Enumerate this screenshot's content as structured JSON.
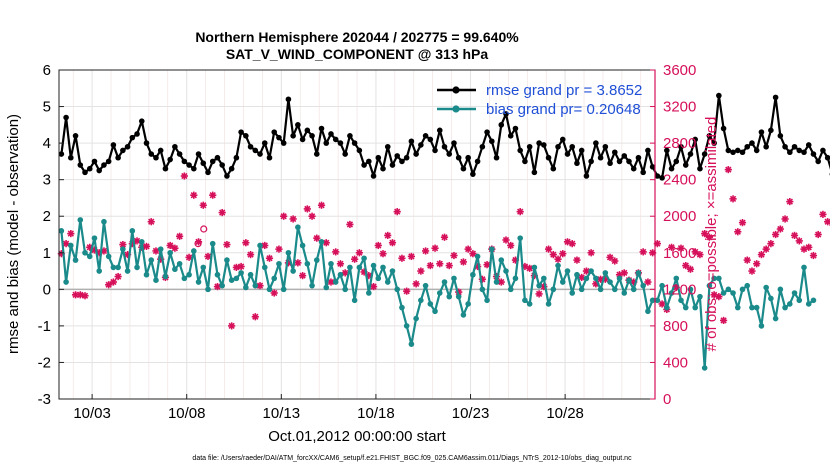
{
  "chart_data": {
    "type": "line",
    "title": "Northern Hemisphere 202044 / 202775 = 99.640%",
    "subtitle": "SAT_V_WIND_COMPONENT @ 313 hPa",
    "xlabel": "Oct.01,2012 00:00:00 start",
    "ylabel": "rmse and bias (model - observation)",
    "y2label": "# of obs: o=possible; ×=assimilated",
    "footnote": "data file: /Users/raeder/DAI/ATM_forcXX/CAM6_setup/f.e21.FHIST_BGC.f09_025.CAM6assim.011/Diags_NTrS_2012-10/obs_diag_output.nc",
    "x_ticks": [
      {
        "label": "10/03",
        "x": 3
      },
      {
        "label": "10/08",
        "x": 8
      },
      {
        "label": "10/13",
        "x": 13
      },
      {
        "label": "10/18",
        "x": 18
      },
      {
        "label": "10/23",
        "x": 23
      },
      {
        "label": "10/28",
        "x": 28
      }
    ],
    "xlim": [
      1.25,
      32.75
    ],
    "ylim": [
      -3,
      6
    ],
    "y_ticks": [
      "-3",
      "-2",
      "-1",
      "0",
      "1",
      "2",
      "3",
      "4",
      "5",
      "6"
    ],
    "y2lim": [
      0,
      3600
    ],
    "y2_ticks": [
      "0",
      "400",
      "800",
      "1200",
      "1600",
      "2000",
      "2400",
      "2800",
      "3200",
      "3600"
    ],
    "grid": true,
    "legend_position": "top-right",
    "x_start": 1.375,
    "x_step": 0.25,
    "series": [
      {
        "name": "rmse grand pr = 3.8652",
        "axis": "left",
        "color": "#000000",
        "marker": "circle",
        "values": [
          3.7,
          4.7,
          3.6,
          4.2,
          3.4,
          3.2,
          3.3,
          3.5,
          3.25,
          3.4,
          3.5,
          3.95,
          3.6,
          3.8,
          3.9,
          4.15,
          4.25,
          4.6,
          4.0,
          3.7,
          3.6,
          3.8,
          3.3,
          3.55,
          3.9,
          3.7,
          3.5,
          3.4,
          3.3,
          3.7,
          3.45,
          3.2,
          3.5,
          3.6,
          3.4,
          3.1,
          3.3,
          3.6,
          4.3,
          4.2,
          3.9,
          3.8,
          3.7,
          4.0,
          3.6,
          4.3,
          4.15,
          4.0,
          5.2,
          4.2,
          4.5,
          4.1,
          4.35,
          4.2,
          3.7,
          4.4,
          4.0,
          4.25,
          4.1,
          4.0,
          3.7,
          4.2,
          4.0,
          3.8,
          3.4,
          3.5,
          3.1,
          3.6,
          3.3,
          3.9,
          3.4,
          3.65,
          3.5,
          3.6,
          4.05,
          3.7,
          3.95,
          4.2,
          4.1,
          3.8,
          4.35,
          3.9,
          3.7,
          4.0,
          3.6,
          3.3,
          3.6,
          3.15,
          3.5,
          3.9,
          4.3,
          4.05,
          3.6,
          4.5,
          4.8,
          4.2,
          4.4,
          3.8,
          3.5,
          3.9,
          3.2,
          4.0,
          3.95,
          3.6,
          3.3,
          3.9,
          4.1,
          3.7,
          3.9,
          3.45,
          3.8,
          3.1,
          3.5,
          4.0,
          3.6,
          3.9,
          3.45,
          3.75,
          3.5,
          3.65,
          3.5,
          3.3,
          3.6,
          3.2,
          3.8,
          3.35,
          3.1,
          3.05,
          3.8,
          3.3,
          3.5,
          3.9,
          3.4,
          3.7,
          4.1,
          3.3,
          3.7,
          4.2,
          4.0,
          5.3,
          4.4,
          3.8,
          3.75,
          3.8,
          3.75,
          3.9,
          4.0,
          3.8,
          4.3,
          3.9,
          4.35,
          5.25,
          4.2,
          3.9,
          3.75,
          3.9,
          3.8,
          3.75,
          3.95,
          3.7,
          3.5,
          3.8,
          3.6,
          3.15
        ]
      },
      {
        "name": "bias grand pr= 0.20648",
        "axis": "left",
        "color": "#1a8a8a",
        "marker": "circle",
        "values": [
          1.6,
          0.2,
          1.2,
          0.8,
          1.9,
          1.0,
          0.9,
          1.4,
          0.5,
          1.85,
          0.9,
          0.6,
          0.6,
          1.1,
          0.5,
          1.6,
          0.6,
          1.3,
          0.4,
          0.8,
          0.25,
          1.1,
          0.35,
          1.0,
          0.55,
          0.7,
          0.3,
          0.4,
          1.05,
          0.2,
          0.6,
          0.0,
          1.25,
          0.4,
          0.1,
          0.8,
          0.25,
          0.3,
          0.45,
          0.05,
          0.4,
          0.1,
          1.2,
          0.6,
          0.0,
          0.3,
          0.7,
          0.0,
          1.0,
          0.5,
          1.7,
          1.2,
          0.7,
          0.1,
          0.8,
          1.3,
          0.05,
          0.7,
          0.2,
          0.4,
          0.0,
          0.6,
          -0.3,
          0.6,
          0.85,
          -0.1,
          0.65,
          0.3,
          0.6,
          0.2,
          0.5,
          0.0,
          -0.5,
          -1.0,
          -1.5,
          -0.8,
          -0.3,
          0.1,
          -0.4,
          -0.6,
          -0.1,
          0.2,
          -0.2,
          0.3,
          -0.2,
          -0.7,
          -0.4,
          0.4,
          0.9,
          0.0,
          -0.3,
          1.1,
          0.2,
          0.8,
          0.5,
          0.0,
          0.3,
          1.4,
          -0.3,
          -0.4,
          0.6,
          0.1,
          0.3,
          -0.4,
          0.0,
          0.65,
          0.2,
          0.5,
          -0.1,
          0.4,
          0.0,
          0.3,
          0.5,
          0.3,
          0.0,
          0.45,
          0.2,
          0.0,
          0.3,
          -0.1,
          0.25,
          0.0,
          0.45,
          0.1,
          -0.6,
          -0.3,
          -0.3,
          0.1,
          -0.5,
          -0.1,
          0.3,
          -0.3,
          -0.5,
          0.0,
          -0.5,
          -0.2,
          -2.15,
          0.1,
          0.3,
          0.3,
          -0.1,
          0.0,
          -0.1,
          -0.5,
          0.0,
          0.1,
          -0.5,
          -0.5,
          -1.0,
          0.05,
          -0.25,
          -0.8,
          0.0,
          -0.5,
          -0.4,
          -0.1,
          -0.3,
          0.6,
          -0.4,
          -0.3
        ]
      }
    ],
    "obs_assimilated": {
      "axis": "right",
      "color": "#d6105a",
      "marker": "asterisk",
      "values": [
        1590,
        1700,
        1810,
        1140,
        1140,
        1130,
        1660,
        1630,
        1600,
        1620,
        1250,
        1280,
        1340,
        1690,
        1580,
        1700,
        1730,
        1660,
        1670,
        1940,
        1620,
        1530,
        1330,
        1680,
        1650,
        1780,
        2440,
        1550,
        2230,
        1720,
        2120,
        1560,
        2230,
        1230,
        2040,
        1690,
        800,
        1440,
        1450,
        1710,
        1580,
        900,
        1240,
        1680,
        1540,
        1160,
        1640,
        2000,
        1490,
        1970,
        1490,
        1350,
        2080,
        2000,
        1760,
        2120,
        1710,
        1280,
        1610,
        1480,
        1380,
        1910,
        1530,
        1600,
        1390,
        1350,
        1230,
        1680,
        1590,
        1790,
        1710,
        2050,
        1540,
        1180,
        1560,
        1260,
        1400,
        1620,
        1460,
        1650,
        1480,
        1770,
        1460,
        1570,
        1170,
        1500,
        1640,
        1590,
        1450,
        1310,
        1470,
        1640,
        1340,
        1280,
        1740,
        1680,
        1520,
        2050,
        1450,
        1430,
        1350,
        1150,
        1230,
        1640,
        1580,
        1530,
        1590,
        1720,
        1700,
        1520,
        1330,
        1400,
        1600,
        1260,
        1310,
        1310,
        1550,
        1510,
        1360,
        1380,
        1300,
        1280,
        1380,
        1610,
        1280,
        1600,
        1700,
        1040,
        980,
        1660,
        1220,
        1650,
        1460,
        1420,
        1610,
        1580,
        1810,
        1770,
        1140,
        1120,
        860,
        2510,
        2190,
        1830,
        1930,
        1520,
        1400,
        1480,
        1580,
        1640,
        1700,
        1800,
        1860,
        1970,
        2160,
        1790,
        1730,
        1640,
        1660,
        1570,
        1800,
        2020,
        1940,
        1920,
        2100,
        1920,
        0
      ]
    },
    "obs_possible": {
      "axis": "right",
      "color": "#d6105a",
      "marker": "circle-open",
      "values": [
        1700,
        1860
      ],
      "x": [
        8.6,
        8.9
      ]
    }
  }
}
